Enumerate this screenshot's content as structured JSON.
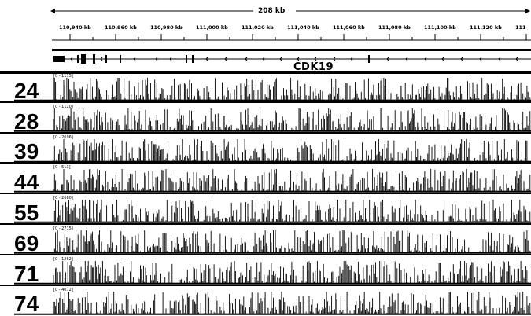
{
  "ruler": {
    "span_label": "208 kb",
    "ticks": [
      "110,940 kb",
      "110,960 kb",
      "110,980 kb",
      "111,000 kb",
      "111,020 kb",
      "111,040 kb",
      "111,060 kb",
      "111,080 kb",
      "111,100 kb",
      "111,120 kb",
      "111"
    ]
  },
  "gene": {
    "name": "CDK19",
    "strand": "-"
  },
  "tracks": [
    {
      "id": "24",
      "range": "[0 - 1115]",
      "seed": 24
    },
    {
      "id": "28",
      "range": "[0 - 1120]",
      "seed": 28
    },
    {
      "id": "39",
      "range": "[0 - 2696]",
      "seed": 39
    },
    {
      "id": "44",
      "range": "[0 - 513]",
      "seed": 44
    },
    {
      "id": "55",
      "range": "[0 - 2680]",
      "seed": 55
    },
    {
      "id": "69",
      "range": "[0 - 2715]",
      "seed": 69
    },
    {
      "id": "71",
      "range": "[0 - 1262]",
      "seed": 71
    },
    {
      "id": "74",
      "range": "[0 - 4072]",
      "seed": 74
    }
  ],
  "colors": {
    "ink": "#000000",
    "background": "#ffffff"
  }
}
